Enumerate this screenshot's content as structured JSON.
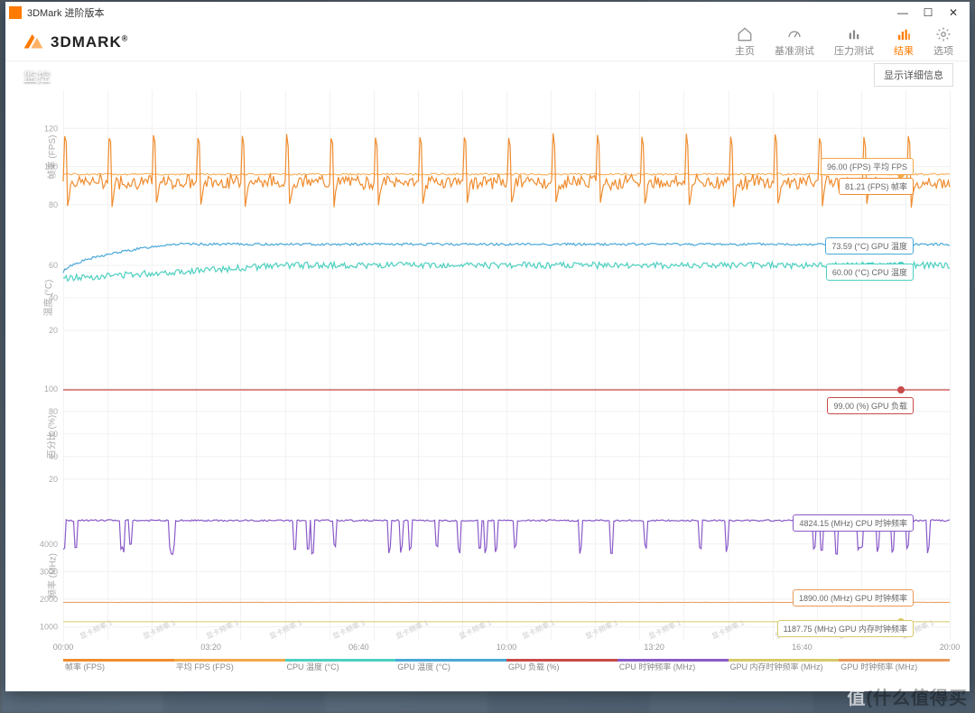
{
  "window": {
    "title": "3DMark 进阶版本"
  },
  "brand": {
    "name": "3DMARK",
    "reg": "®"
  },
  "nav": {
    "home": "主页",
    "bench": "基准测试",
    "stress": "压力测试",
    "result": "结果",
    "options": "选项"
  },
  "detail_button": "显示详细信息",
  "section_title": "监控",
  "axes": {
    "y1_label": "帧率 (FPS)",
    "y2_label": "温度 (°C)",
    "y3_label": "百分比 (%)",
    "y4_label": "频率 (MHz)",
    "y1_ticks": [
      80,
      100,
      120
    ],
    "y1_range": [
      70,
      140
    ],
    "y2_ticks": [
      20,
      40,
      60
    ],
    "y2_range": [
      0,
      80
    ],
    "y3_ticks": [
      20,
      40,
      60,
      80,
      100
    ],
    "y3_range": [
      0,
      115
    ],
    "y4_ticks": [
      1000,
      2000,
      3000,
      4000
    ],
    "y4_range": [
      500,
      5200
    ],
    "x_ticks": [
      "00:00",
      "03:20",
      "06:40",
      "10:00",
      "13:20",
      "16:40",
      "20:00"
    ]
  },
  "colors": {
    "fps": "#f08c2e",
    "avg_fps": "#f5a84a",
    "cpu_temp": "#4dd0c0",
    "gpu_temp": "#4aa8d8",
    "gpu_load": "#c94a4a",
    "cpu_clk": "#8a5ac9",
    "gpu_clk": "#e89a5a",
    "gpu_mem": "#d8c968",
    "grid": "#f2f2f2",
    "bg": "#ffffff"
  },
  "badges": {
    "avg_fps": "96.00 (FPS) 平均 FPS",
    "fps": "81.21 (FPS) 帧率",
    "gpu_temp": "73.59 (°C) GPU 温度",
    "cpu_temp": "60.00 (°C) CPU 温度",
    "gpu_load": "99.00 (%) GPU 负载",
    "cpu_clk": "4824.15 (MHz) CPU 时钟频率",
    "gpu_clk": "1890.00 (MHz) GPU 时钟频率",
    "gpu_mem": "1187.75 (MHz) GPU 内存时钟频率"
  },
  "legend": {
    "items": [
      "帧率 (FPS)",
      "平均 FPS (FPS)",
      "CPU 温度 (°C)",
      "GPU 温度 (°C)",
      "GPU 负载 (%)",
      "CPU 时钟频率 (MHz)",
      "GPU 内存时钟频率 (MHz)",
      "GPU 时钟频率 (MHz)"
    ]
  },
  "series": {
    "fps_pattern": {
      "base": 92,
      "spike": 128,
      "dip": 80,
      "cycles": 20,
      "noise": 3
    },
    "avg_fps": 96,
    "gpu_temp": {
      "start": 55,
      "end": 73,
      "rise_frac": 0.12
    },
    "cpu_temp": {
      "start": 52,
      "end": 60,
      "noise": 2
    },
    "gpu_load": 99,
    "cpu_clk": {
      "base": 4850,
      "dips": 34,
      "dip_to": 3800
    },
    "gpu_clk": 1890,
    "gpu_mem": 1188
  },
  "tickmark_label": "显卡频率 1",
  "watermark": "值(什么值得买"
}
